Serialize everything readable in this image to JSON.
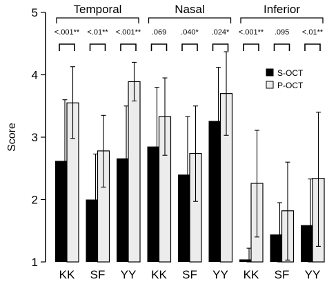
{
  "chart_data": {
    "type": "bar",
    "ylabel": "Score",
    "ylim": [
      1,
      5
    ],
    "yticks": [
      "1",
      "2",
      "3",
      "4",
      "5"
    ],
    "categories": [
      "KK",
      "SF",
      "YY",
      "KK",
      "SF",
      "YY",
      "KK",
      "SF",
      "YY"
    ],
    "groups": [
      {
        "label": "Temporal",
        "categories": [
          0,
          1,
          2
        ]
      },
      {
        "label": "Nasal",
        "categories": [
          3,
          4,
          5
        ]
      },
      {
        "label": "Inferior",
        "categories": [
          6,
          7,
          8
        ]
      }
    ],
    "p_values": [
      ".001",
      ".01",
      ".001",
      ".069",
      ".040",
      ".024",
      ".001",
      ".095",
      ".01"
    ],
    "p_prefix": [
      "<",
      "<",
      "<",
      "",
      "",
      "",
      "<",
      "",
      "<"
    ],
    "p_stars": [
      "**",
      "**",
      "**",
      "",
      "*",
      "*",
      "**",
      "",
      "**"
    ],
    "series": [
      {
        "name": "S-OCT",
        "color": "#000000",
        "values": [
          2.62,
          2.0,
          2.66,
          2.85,
          2.4,
          3.26,
          1.04,
          1.44,
          1.59
        ],
        "err_low": [
          1.97,
          1.28,
          1.82,
          1.9,
          1.49,
          2.41,
          1.0,
          1.0,
          1.0
        ],
        "err_high": [
          3.6,
          2.73,
          3.5,
          3.8,
          3.33,
          4.12,
          1.22,
          1.95,
          2.33
        ]
      },
      {
        "name": "P-OCT",
        "color": "#ececec",
        "values": [
          3.55,
          2.78,
          3.89,
          3.33,
          2.74,
          3.7,
          2.26,
          1.82,
          2.34
        ],
        "err_low": [
          2.98,
          2.2,
          3.58,
          2.71,
          1.97,
          3.03,
          1.4,
          1.03,
          1.25
        ],
        "err_high": [
          4.13,
          3.35,
          4.2,
          3.95,
          3.5,
          4.37,
          3.11,
          2.6,
          3.4
        ]
      }
    ],
    "legend": {
      "position": "right, upper",
      "entries": [
        "S-OCT",
        "P-OCT"
      ]
    },
    "grid": false
  }
}
